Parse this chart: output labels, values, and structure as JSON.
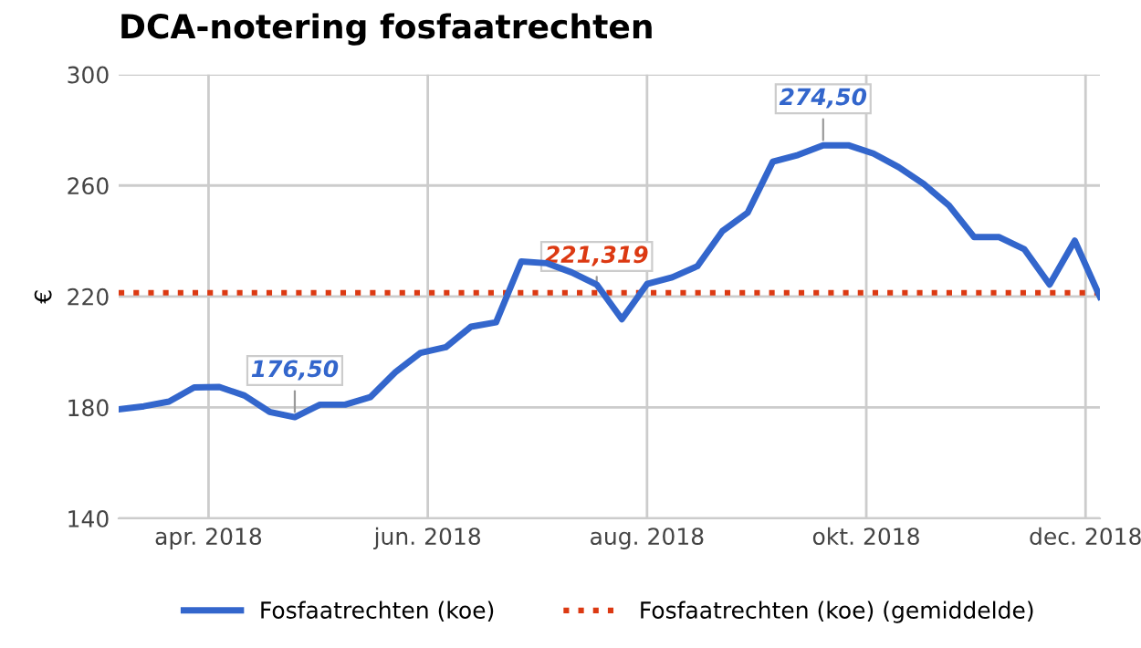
{
  "chart_data": {
    "type": "line",
    "title": "DCA-notering fosfaatrechten",
    "ylabel": "€",
    "x": [
      "2018-03-07",
      "2018-03-14",
      "2018-03-21",
      "2018-03-28",
      "2018-04-04",
      "2018-04-11",
      "2018-04-18",
      "2018-04-25",
      "2018-05-02",
      "2018-05-09",
      "2018-05-16",
      "2018-05-23",
      "2018-05-30",
      "2018-06-06",
      "2018-06-13",
      "2018-06-20",
      "2018-06-27",
      "2018-07-04",
      "2018-07-11",
      "2018-07-18",
      "2018-07-25",
      "2018-08-01",
      "2018-08-08",
      "2018-08-15",
      "2018-08-22",
      "2018-08-29",
      "2018-09-05",
      "2018-09-12",
      "2018-09-19",
      "2018-09-26",
      "2018-10-03",
      "2018-10-10",
      "2018-10-17",
      "2018-10-24",
      "2018-10-31",
      "2018-11-07",
      "2018-11-14",
      "2018-11-21",
      "2018-11-28",
      "2018-12-05"
    ],
    "series": [
      {
        "name": "Fosfaatrechten (koe)",
        "color": "#3366cc",
        "values": [
          179.3,
          180.4,
          182.1,
          187.2,
          187.4,
          184.3,
          178.4,
          176.5,
          181,
          181,
          183.7,
          192.7,
          199.7,
          201.7,
          209.1,
          210.7,
          232.6,
          232,
          228.7,
          224.3,
          211.8,
          224.5,
          226.9,
          230.9,
          243.6,
          250.2,
          268.6,
          271,
          274.5,
          274.5,
          271.5,
          266.6,
          260.5,
          252.8,
          241.4,
          241.4,
          237,
          224.3,
          240.1,
          219.9
        ],
        "value_labels": [
          null,
          null,
          null,
          null,
          null,
          null,
          null,
          "176,50",
          null,
          null,
          null,
          null,
          null,
          null,
          null,
          null,
          null,
          null,
          null,
          null,
          null,
          null,
          null,
          null,
          null,
          null,
          null,
          null,
          "274,50",
          null,
          null,
          null,
          null,
          null,
          null,
          null,
          null,
          null,
          null,
          null
        ]
      }
    ],
    "ref_lines": [
      {
        "axis": "y",
        "value": 221.319,
        "label": "Fosfaatrechten (koe) (gemiddelde)",
        "color": "#dc3912",
        "line_style": "dotted"
      }
    ],
    "annotations": [
      {
        "text": "221,319",
        "x": "2018-07-18",
        "y": 221.319
      }
    ],
    "xlim": [
      "2018-03-07",
      "2018-12-05"
    ],
    "xticks": [
      {
        "value": "2018-04-01",
        "label": "apr. 2018"
      },
      {
        "value": "2018-06-01",
        "label": "jun. 2018"
      },
      {
        "value": "2018-08-01",
        "label": "aug. 2018"
      },
      {
        "value": "2018-10-01",
        "label": "okt. 2018"
      },
      {
        "value": "2018-12-01",
        "label": "dec. 2018"
      }
    ],
    "ylim": [
      140,
      300
    ],
    "yticks": [
      140,
      180,
      220,
      260,
      300
    ],
    "grid": true,
    "legend": "bottom",
    "marker": "none",
    "line_style": "solid"
  }
}
